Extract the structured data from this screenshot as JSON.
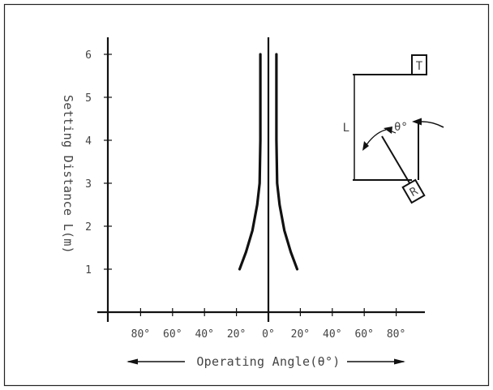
{
  "chart_data": {
    "type": "line",
    "title": "",
    "xlabel": "Operating Angle(θ°)",
    "ylabel": "Setting Distance L(m)",
    "xlim": [
      -90,
      90
    ],
    "ylim": [
      0,
      6.5
    ],
    "x_ticks": [
      {
        "value": -80,
        "label": "80°"
      },
      {
        "value": -60,
        "label": "60°"
      },
      {
        "value": -40,
        "label": "40°"
      },
      {
        "value": -20,
        "label": "20°"
      },
      {
        "value": 0,
        "label": "0°"
      },
      {
        "value": 20,
        "label": "20°"
      },
      {
        "value": 40,
        "label": "40°"
      },
      {
        "value": 60,
        "label": "60°"
      },
      {
        "value": 80,
        "label": "80°"
      }
    ],
    "y_ticks": [
      1,
      2,
      3,
      4,
      5,
      6
    ],
    "grid": false,
    "series": [
      {
        "x": [
          -5,
          -5,
          -5.5,
          -7,
          -10,
          -14,
          -18
        ],
        "y": [
          6,
          4,
          3,
          2.5,
          1.9,
          1.4,
          1
        ]
      },
      {
        "x": [
          5,
          5,
          5.5,
          7,
          10,
          14,
          18
        ],
        "y": [
          6,
          4,
          3,
          2.5,
          1.9,
          1.4,
          1
        ]
      }
    ],
    "diagram": {
      "transmitter_label": "T",
      "receiver_label": "R",
      "distance_label": "L",
      "angle_label": "θ°"
    }
  }
}
